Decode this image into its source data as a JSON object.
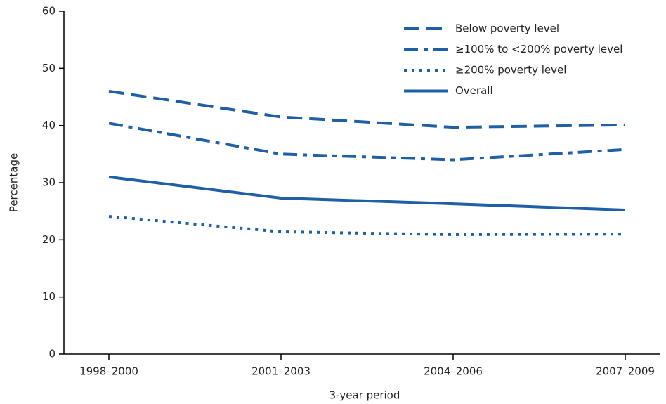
{
  "chart_data": {
    "type": "line",
    "x_label": "3-year period",
    "y_label": "Percentage",
    "categories": [
      "1998–2000",
      "2001–2003",
      "2004–2006",
      "2007–2009"
    ],
    "series": [
      {
        "name": "Below poverty level",
        "color": "#1f5fa5",
        "dash": "dashed",
        "values": [
          46,
          41.5,
          39.7,
          40.1
        ]
      },
      {
        "name": "≥100% to <200% poverty level",
        "color": "#1f5fa5",
        "dash": "dashdot",
        "values": [
          40.4,
          35,
          34,
          35.8
        ]
      },
      {
        "name": "≥200% poverty level",
        "color": "#1f5fa5",
        "dash": "dotted",
        "values": [
          24.1,
          21.4,
          20.9,
          21
        ]
      },
      {
        "name": "Overall",
        "color": "#1f5fa5",
        "dash": "solid",
        "values": [
          31,
          27.3,
          26.3,
          25.2
        ]
      }
    ],
    "ylim": [
      0,
      60
    ],
    "yticks": [
      0,
      10,
      20,
      30,
      40,
      50,
      60
    ],
    "legend": "upper right"
  }
}
